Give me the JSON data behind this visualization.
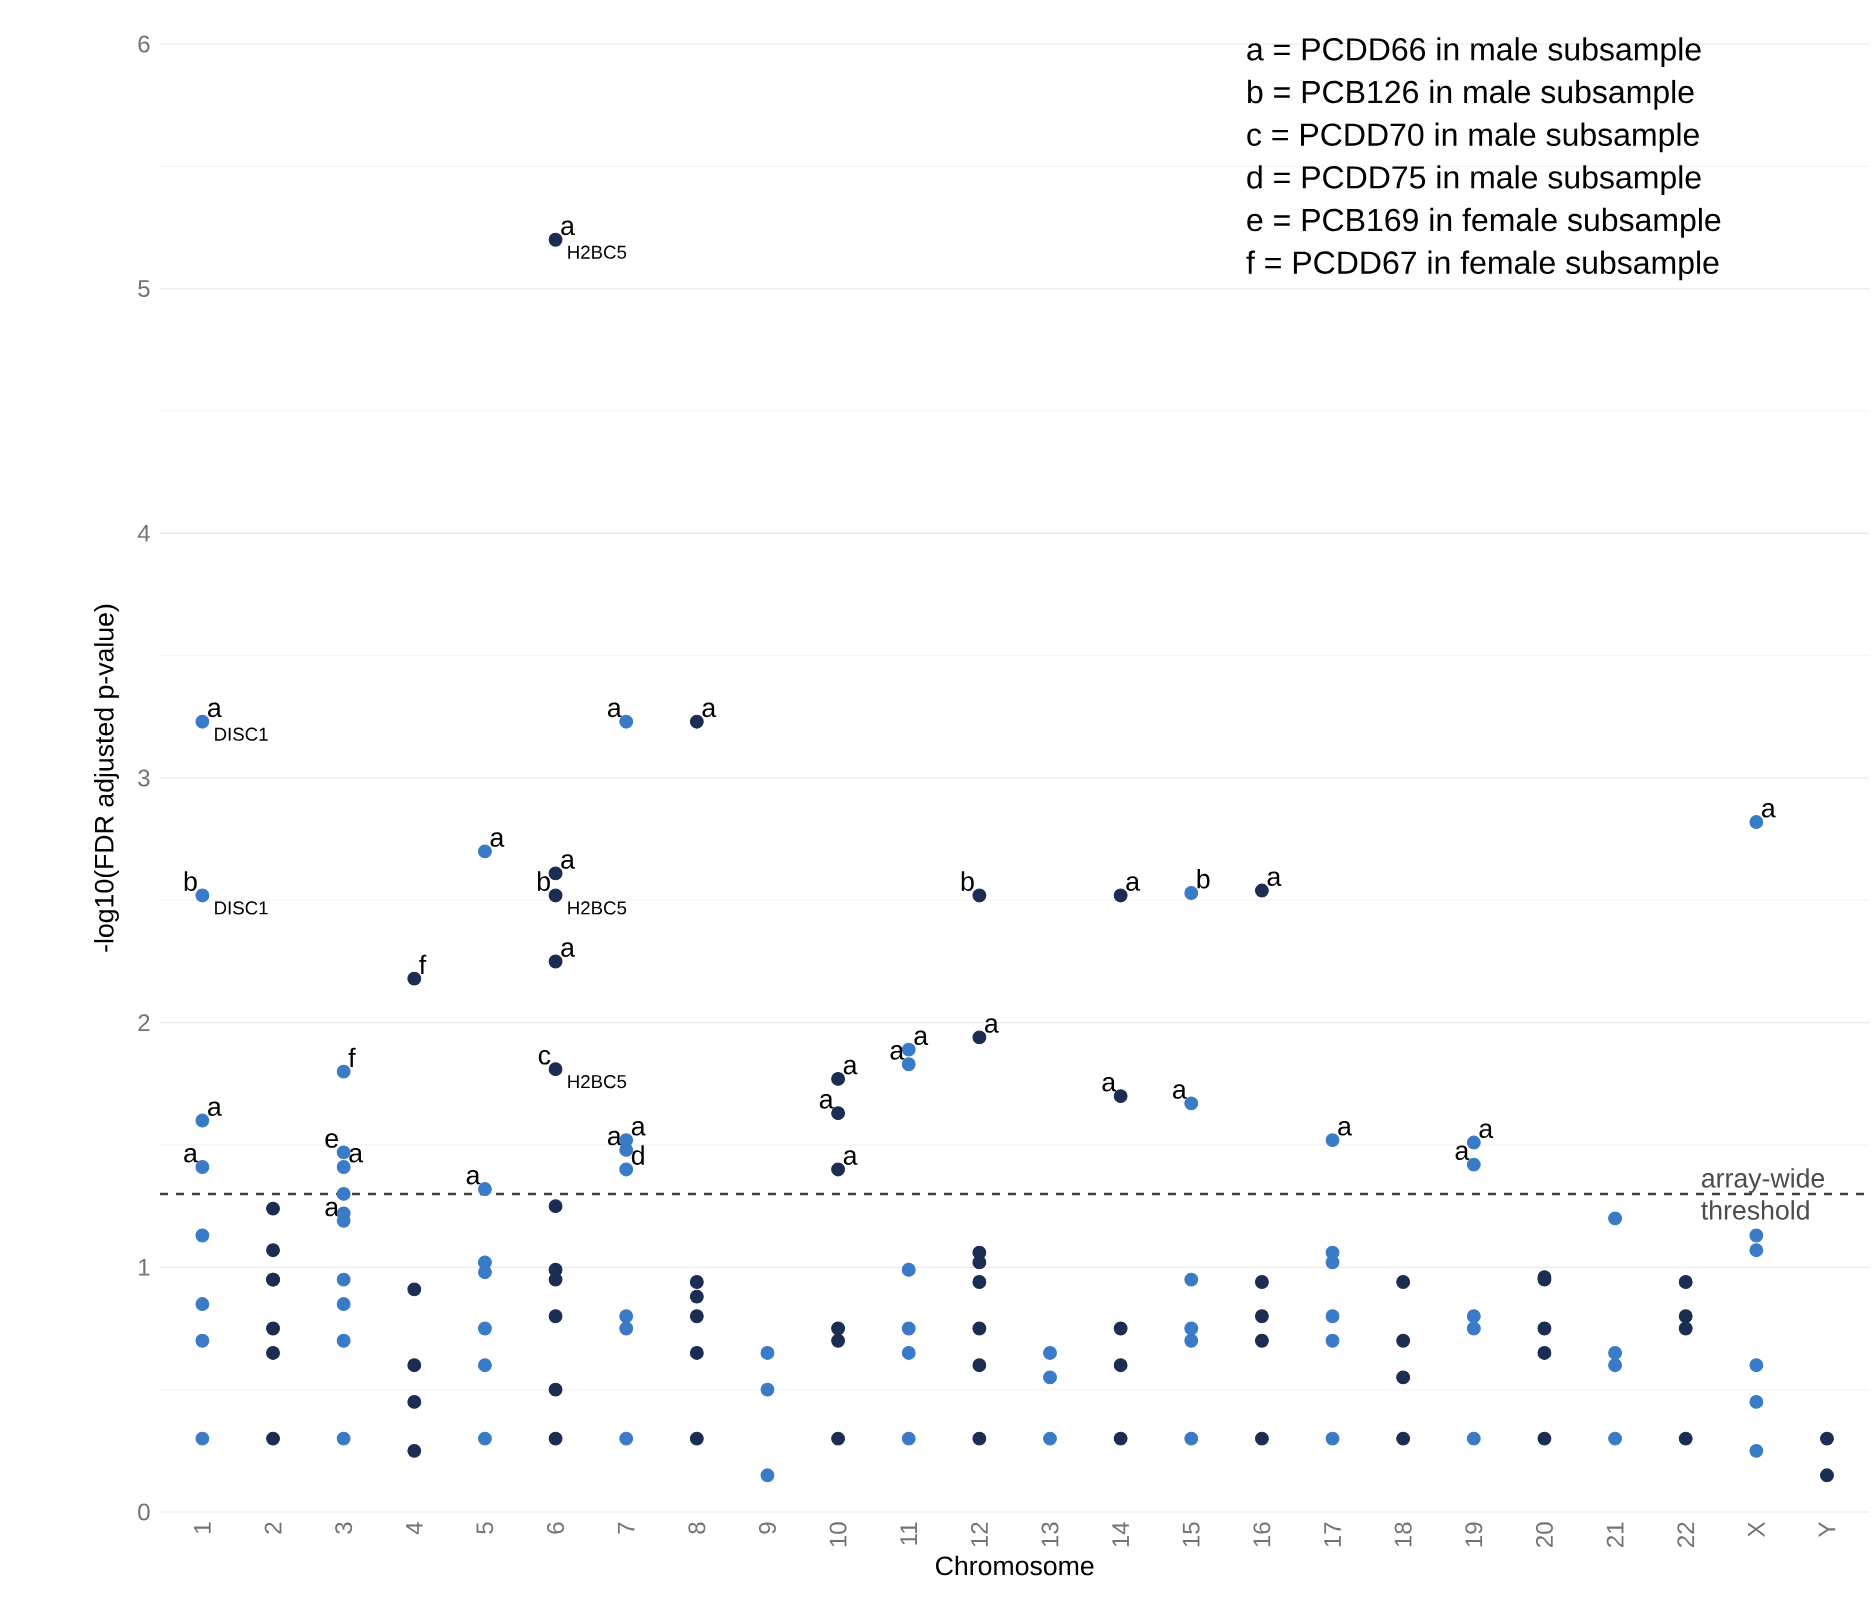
{
  "chart_data": {
    "type": "scatter",
    "xlabel": "Chromosome",
    "ylabel": "-log10(FDR adjusted p-value)",
    "categories": [
      "1",
      "2",
      "3",
      "4",
      "5",
      "6",
      "7",
      "8",
      "9",
      "10",
      "11",
      "12",
      "13",
      "14",
      "15",
      "16",
      "17",
      "18",
      "19",
      "20",
      "21",
      "22",
      "X",
      "Y"
    ],
    "ylim": [
      0,
      6
    ],
    "yticks": [
      0,
      1,
      2,
      3,
      4,
      5,
      6
    ],
    "grid": "y",
    "marker": "circle",
    "series": [
      {
        "color": "#3a7bc8",
        "x": [
          "1",
          "1",
          "1",
          "1",
          "1",
          "1",
          "1",
          "1",
          "3",
          "3",
          "3",
          "3",
          "3",
          "3",
          "3",
          "3",
          "3",
          "3",
          "5",
          "5",
          "5",
          "5",
          "5",
          "5",
          "5",
          "7",
          "7",
          "7",
          "7",
          "7",
          "7",
          "7",
          "9",
          "9",
          "9",
          "11",
          "11",
          "11",
          "11",
          "11",
          "11",
          "13",
          "13",
          "13",
          "15",
          "15",
          "15",
          "15",
          "15",
          "15",
          "17",
          "17",
          "17",
          "17",
          "17",
          "17",
          "19",
          "19",
          "19",
          "19",
          "19",
          "21",
          "21",
          "21",
          "21",
          "X",
          "X",
          "X",
          "X",
          "X",
          "X"
        ],
        "values": [
          0.85,
          0.7,
          0.3,
          1.13,
          1.6,
          1.41,
          3.23,
          2.52,
          0.85,
          0.7,
          0.3,
          1.22,
          1.3,
          0.95,
          1.8,
          1.47,
          1.41,
          1.19,
          0.75,
          0.6,
          0.3,
          0.98,
          1.02,
          2.7,
          1.32,
          0.8,
          0.75,
          0.3,
          1.52,
          1.48,
          1.4,
          3.23,
          0.65,
          0.5,
          0.15,
          0.75,
          0.65,
          0.3,
          0.99,
          1.89,
          1.83,
          0.65,
          0.55,
          0.3,
          0.75,
          0.7,
          0.3,
          0.95,
          2.53,
          1.67,
          0.8,
          0.7,
          0.3,
          1.06,
          1.02,
          1.52,
          0.8,
          0.75,
          0.3,
          1.51,
          1.42,
          0.65,
          0.6,
          0.3,
          1.2,
          0.6,
          0.45,
          0.25,
          1.13,
          1.07,
          2.82
        ]
      },
      {
        "color": "#1c2d52",
        "x": [
          "2",
          "2",
          "2",
          "2",
          "2",
          "2",
          "2",
          "4",
          "4",
          "4",
          "4",
          "4",
          "6",
          "6",
          "6",
          "6",
          "6",
          "6",
          "6",
          "6",
          "6",
          "6",
          "6",
          "8",
          "8",
          "8",
          "8",
          "8",
          "8",
          "10",
          "10",
          "10",
          "10",
          "10",
          "10",
          "12",
          "12",
          "12",
          "12",
          "12",
          "12",
          "12",
          "12",
          "14",
          "14",
          "14",
          "14",
          "14",
          "16",
          "16",
          "16",
          "16",
          "16",
          "18",
          "18",
          "18",
          "18",
          "20",
          "20",
          "20",
          "20",
          "20",
          "22",
          "22",
          "22",
          "22",
          "Y",
          "Y"
        ],
        "values": [
          0.75,
          0.65,
          0.3,
          1.24,
          1.07,
          0.95,
          0.95,
          0.6,
          0.45,
          0.25,
          0.91,
          2.18,
          0.8,
          0.5,
          0.3,
          1.25,
          0.99,
          0.95,
          2.61,
          2.52,
          2.25,
          1.81,
          5.2,
          0.8,
          0.65,
          0.3,
          0.88,
          0.94,
          3.23,
          0.75,
          0.7,
          0.3,
          1.77,
          1.63,
          1.4,
          0.75,
          0.6,
          0.3,
          1.06,
          0.94,
          1.02,
          1.94,
          2.52,
          0.75,
          0.6,
          0.3,
          2.52,
          1.7,
          0.8,
          0.7,
          0.3,
          0.94,
          2.54,
          0.7,
          0.55,
          0.3,
          0.94,
          0.75,
          0.65,
          0.3,
          0.95,
          0.96,
          0.8,
          0.75,
          0.3,
          0.94,
          0.3,
          0.15
        ]
      }
    ],
    "ref_lines": [
      {
        "axis": "y",
        "value": 1.3,
        "label": "array-wide threshold",
        "line_style": "dashed"
      }
    ],
    "annotations": [
      "a = PCDD66 in male subsample",
      "b = PCB126 in male subsample",
      "c = PCDD70 in male subsample",
      "d = PCDD75 in male subsample",
      "e = PCB169 in female subsample",
      "f = PCDD67 in female subsample",
      {
        "text": "a",
        "x": "1",
        "y": 1.6
      },
      {
        "text": "a",
        "x": "1",
        "y": 1.41
      },
      {
        "text": "a",
        "x": "1",
        "y": 3.23
      },
      {
        "text": "DISC1",
        "x": "1",
        "y": 3.23
      },
      {
        "text": "b",
        "x": "1",
        "y": 2.52
      },
      {
        "text": "DISC1",
        "x": "1",
        "y": 2.52
      },
      {
        "text": "f",
        "x": "4",
        "y": 2.18
      },
      {
        "text": "f",
        "x": "3",
        "y": 1.8
      },
      {
        "text": "e",
        "x": "3",
        "y": 1.47
      },
      {
        "text": "a",
        "x": "3",
        "y": 1.41
      },
      {
        "text": "a",
        "x": "3",
        "y": 1.19
      },
      {
        "text": "a",
        "x": "5",
        "y": 2.7
      },
      {
        "text": "a",
        "x": "5",
        "y": 1.32
      },
      {
        "text": "a",
        "x": "6",
        "y": 2.61
      },
      {
        "text": "b",
        "x": "6",
        "y": 2.52
      },
      {
        "text": "H2BC5",
        "x": "6",
        "y": 2.52
      },
      {
        "text": "a",
        "x": "6",
        "y": 2.25
      },
      {
        "text": "c",
        "x": "6",
        "y": 1.81
      },
      {
        "text": "H2BC5",
        "x": "6",
        "y": 1.81
      },
      {
        "text": "a",
        "x": "6",
        "y": 5.2
      },
      {
        "text": "H2BC5",
        "x": "6",
        "y": 5.2
      },
      {
        "text": "a",
        "x": "7",
        "y": 1.52
      },
      {
        "text": "a",
        "x": "7",
        "y": 1.48
      },
      {
        "text": "d",
        "x": "7",
        "y": 1.4
      },
      {
        "text": "a",
        "x": "7",
        "y": 3.23
      },
      {
        "text": "a",
        "x": "8",
        "y": 3.23
      },
      {
        "text": "a",
        "x": "10",
        "y": 1.77
      },
      {
        "text": "a",
        "x": "10",
        "y": 1.63
      },
      {
        "text": "a",
        "x": "10",
        "y": 1.4
      },
      {
        "text": "a",
        "x": "11",
        "y": 1.89
      },
      {
        "text": "a",
        "x": "11",
        "y": 1.83
      },
      {
        "text": "a",
        "x": "12",
        "y": 1.94
      },
      {
        "text": "b",
        "x": "12",
        "y": 2.52
      },
      {
        "text": "a",
        "x": "14",
        "y": 2.52
      },
      {
        "text": "a",
        "x": "14",
        "y": 1.7
      },
      {
        "text": "b",
        "x": "15",
        "y": 2.53
      },
      {
        "text": "a",
        "x": "15",
        "y": 1.67
      },
      {
        "text": "a",
        "x": "16",
        "y": 2.54
      },
      {
        "text": "a",
        "x": "17",
        "y": 1.52
      },
      {
        "text": "a",
        "x": "19",
        "y": 1.51
      },
      {
        "text": "a",
        "x": "19",
        "y": 1.42
      },
      {
        "text": "a",
        "x": "X",
        "y": 2.82
      }
    ]
  }
}
